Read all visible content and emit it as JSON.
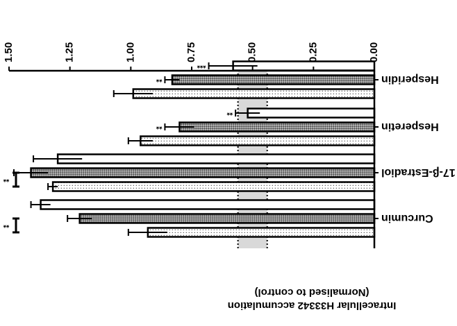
{
  "chart_data": {
    "type": "bar",
    "orientation": "horizontal",
    "rendered_rotation": 180,
    "categories": [
      "Curcumin",
      "17-β-Estradiol",
      "Hesperetin",
      "Hesperidin"
    ],
    "series": [
      {
        "pattern": "dotted",
        "values": [
          0.93,
          1.32,
          0.96,
          0.99
        ],
        "errors": [
          0.08,
          0.02,
          0.05,
          0.08
        ]
      },
      {
        "pattern": "cross-hatched",
        "values": [
          1.21,
          1.41,
          0.8,
          0.83
        ],
        "errors": [
          0.05,
          0.07,
          0.06,
          0.03
        ]
      },
      {
        "pattern": "open",
        "values": [
          1.37,
          1.3,
          0.52,
          0.58
        ],
        "errors": [
          0.04,
          0.1,
          0.05,
          0.1
        ]
      }
    ],
    "significance": [
      [
        "",
        "",
        "**",
        "**"
      ],
      [
        "",
        "",
        "**",
        "***"
      ]
    ],
    "brackets": [
      "**",
      "**"
    ],
    "reference_band": [
      0.44,
      0.56
    ],
    "ylabel_line1": "Intracellular H33342 accumulation",
    "ylabel_line2": "(Normalised to control)",
    "ylim": [
      0,
      1.5
    ],
    "yticks": [
      "0.00",
      "0.25",
      "0.50",
      "0.75",
      "1.00",
      "1.25",
      "1.50"
    ],
    "grid": false,
    "legend": "none"
  }
}
